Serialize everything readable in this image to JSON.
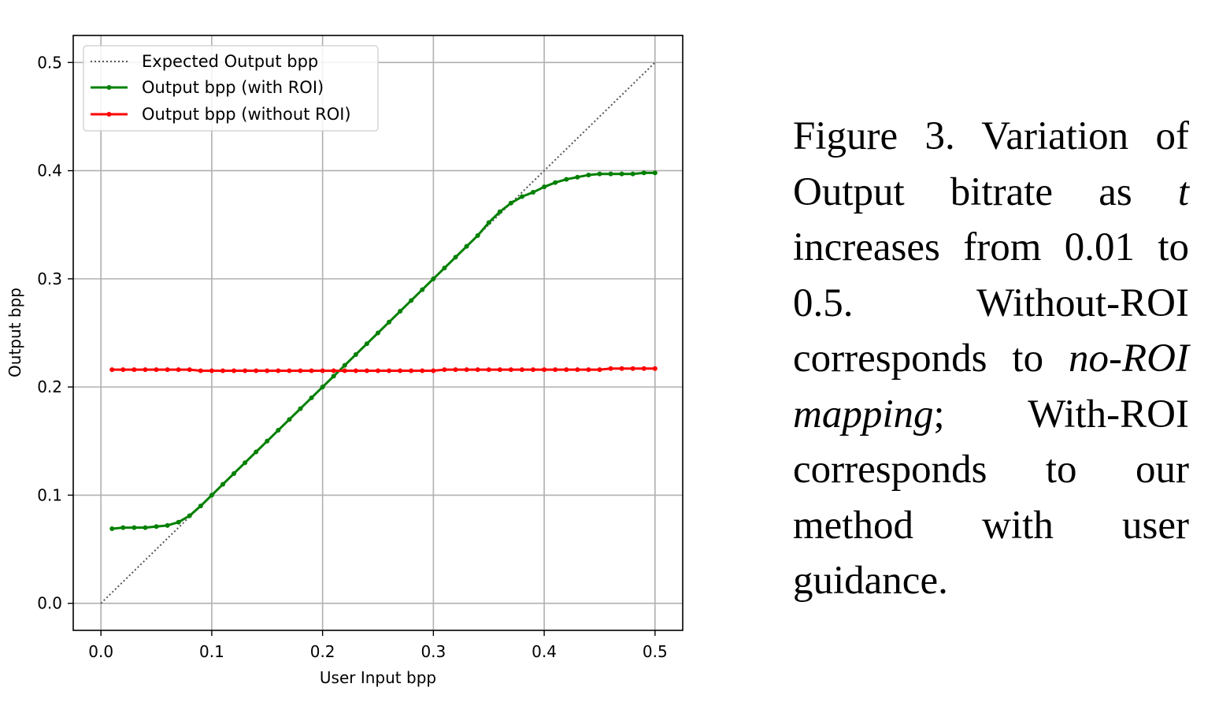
{
  "chart_data": {
    "type": "line",
    "title": "",
    "xlabel": "User Input bpp",
    "ylabel": "Output bpp",
    "xlim": [
      -0.025,
      0.525
    ],
    "ylim": [
      -0.025,
      0.525
    ],
    "xticks": [
      0.0,
      0.1,
      0.2,
      0.3,
      0.4,
      0.5
    ],
    "yticks": [
      0.0,
      0.1,
      0.2,
      0.3,
      0.4,
      0.5
    ],
    "xtick_labels": [
      "0.0",
      "0.1",
      "0.2",
      "0.3",
      "0.4",
      "0.5"
    ],
    "ytick_labels": [
      "0.0",
      "0.1",
      "0.2",
      "0.3",
      "0.4",
      "0.5"
    ],
    "grid": true,
    "legend_position": "top-left",
    "series": [
      {
        "name": "Expected Output bpp",
        "color": "#555555",
        "style": "dotted",
        "markers": false,
        "x": [
          0.0,
          0.5
        ],
        "y": [
          0.0,
          0.5
        ]
      },
      {
        "name": "Output bpp (with ROI)",
        "color": "#008000",
        "style": "solid",
        "markers": true,
        "x": [
          0.01,
          0.02,
          0.03,
          0.04,
          0.05,
          0.06,
          0.07,
          0.08,
          0.09,
          0.1,
          0.11,
          0.12,
          0.13,
          0.14,
          0.15,
          0.16,
          0.17,
          0.18,
          0.19,
          0.2,
          0.21,
          0.22,
          0.23,
          0.24,
          0.25,
          0.26,
          0.27,
          0.28,
          0.29,
          0.3,
          0.31,
          0.32,
          0.33,
          0.34,
          0.35,
          0.36,
          0.37,
          0.38,
          0.39,
          0.4,
          0.41,
          0.42,
          0.43,
          0.44,
          0.45,
          0.46,
          0.47,
          0.48,
          0.49,
          0.5
        ],
        "y": [
          0.069,
          0.07,
          0.07,
          0.07,
          0.071,
          0.072,
          0.075,
          0.081,
          0.09,
          0.1,
          0.11,
          0.12,
          0.13,
          0.14,
          0.15,
          0.16,
          0.17,
          0.18,
          0.19,
          0.2,
          0.21,
          0.22,
          0.23,
          0.24,
          0.25,
          0.26,
          0.27,
          0.28,
          0.29,
          0.3,
          0.31,
          0.32,
          0.33,
          0.34,
          0.352,
          0.362,
          0.37,
          0.376,
          0.38,
          0.385,
          0.389,
          0.392,
          0.394,
          0.396,
          0.397,
          0.397,
          0.397,
          0.397,
          0.398,
          0.398
        ]
      },
      {
        "name": "Output bpp (without ROI)",
        "color": "#ff0000",
        "style": "solid",
        "markers": true,
        "x": [
          0.01,
          0.02,
          0.03,
          0.04,
          0.05,
          0.06,
          0.07,
          0.08,
          0.09,
          0.1,
          0.11,
          0.12,
          0.13,
          0.14,
          0.15,
          0.16,
          0.17,
          0.18,
          0.19,
          0.2,
          0.21,
          0.22,
          0.23,
          0.24,
          0.25,
          0.26,
          0.27,
          0.28,
          0.29,
          0.3,
          0.31,
          0.32,
          0.33,
          0.34,
          0.35,
          0.36,
          0.37,
          0.38,
          0.39,
          0.4,
          0.41,
          0.42,
          0.43,
          0.44,
          0.45,
          0.46,
          0.47,
          0.48,
          0.49,
          0.5
        ],
        "y": [
          0.216,
          0.216,
          0.216,
          0.216,
          0.216,
          0.216,
          0.216,
          0.216,
          0.215,
          0.215,
          0.215,
          0.215,
          0.215,
          0.215,
          0.215,
          0.215,
          0.215,
          0.215,
          0.215,
          0.215,
          0.215,
          0.215,
          0.215,
          0.215,
          0.215,
          0.215,
          0.215,
          0.215,
          0.215,
          0.215,
          0.216,
          0.216,
          0.216,
          0.216,
          0.216,
          0.216,
          0.216,
          0.216,
          0.216,
          0.216,
          0.216,
          0.216,
          0.216,
          0.216,
          0.216,
          0.217,
          0.217,
          0.217,
          0.217,
          0.217
        ]
      }
    ]
  },
  "caption": {
    "label": "Figure 3.",
    "part1": "Variation of Output bitrate as",
    "var": "t",
    "part2": "increases from 0.01 to 0.5.  Without-ROI corresponds to",
    "em1": "no-ROI mapping",
    "part3": "; With-ROI corresponds to our method with user guidance."
  }
}
